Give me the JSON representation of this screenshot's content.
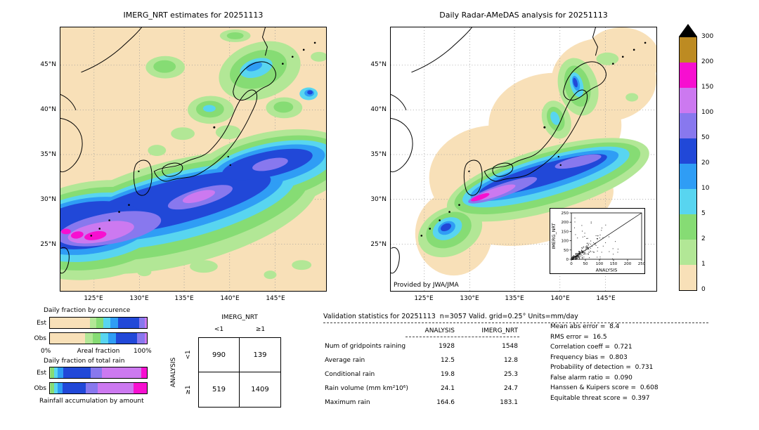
{
  "panels": {
    "left_title": "IMERG_NRT estimates for 20251113",
    "right_title": "Daily Radar-AMeDAS analysis for 20251113",
    "credit": "Provided by JWA/JMA"
  },
  "axes": {
    "lat": [
      "45°N",
      "40°N",
      "35°N",
      "30°N",
      "25°N"
    ],
    "lon": [
      "125°E",
      "130°E",
      "135°E",
      "140°E",
      "145°E"
    ]
  },
  "colorbar": {
    "units_levels": [
      0,
      1,
      2,
      5,
      10,
      20,
      50,
      100,
      150,
      200,
      300
    ],
    "labels": [
      "300",
      "200",
      "150",
      "100",
      "50",
      "20",
      "10",
      "5",
      "2",
      "1",
      "0"
    ],
    "colors": [
      "#bd8b22",
      "#f70fd0",
      "#cc79f0",
      "#8878ee",
      "#2148d8",
      "#2f9df5",
      "#58d5f0",
      "#86dc74",
      "#b2e796",
      "#f8e0b8"
    ]
  },
  "inset": {
    "xlabel": "ANALYSIS",
    "ylabel": "IMERG_NRT",
    "ticks": [
      "0",
      "50",
      "100",
      "150",
      "200",
      "250"
    ]
  },
  "fractions": {
    "occurrence_title": "Daily fraction by occurence",
    "total_title": "Daily fraction of total rain",
    "areal_label": "Areal fraction",
    "pct0": "0%",
    "pct100": "100%",
    "accum_label": "Rainfall accumulation by amount",
    "est": "Est",
    "obs": "Obs",
    "occurrence_est": [
      [
        "#f8e0b8",
        41
      ],
      [
        "#b2e796",
        7
      ],
      [
        "#86dc74",
        7
      ],
      [
        "#58d5f0",
        7
      ],
      [
        "#2f9df5",
        8
      ],
      [
        "#2148d8",
        22
      ],
      [
        "#8878ee",
        6
      ],
      [
        "#cc79f0",
        2
      ]
    ],
    "occurrence_obs": [
      [
        "#f8e0b8",
        36
      ],
      [
        "#b2e796",
        8
      ],
      [
        "#86dc74",
        8
      ],
      [
        "#58d5f0",
        8
      ],
      [
        "#2f9df5",
        8
      ],
      [
        "#2148d8",
        22
      ],
      [
        "#8878ee",
        8
      ],
      [
        "#cc79f0",
        2
      ]
    ],
    "total_est": [
      [
        "#b2e796",
        1
      ],
      [
        "#86dc74",
        3
      ],
      [
        "#58d5f0",
        4
      ],
      [
        "#2f9df5",
        6
      ],
      [
        "#2148d8",
        28
      ],
      [
        "#8878ee",
        12
      ],
      [
        "#cc79f0",
        40
      ],
      [
        "#f70fd0",
        6
      ]
    ],
    "total_obs": [
      [
        "#b2e796",
        1
      ],
      [
        "#86dc74",
        3
      ],
      [
        "#58d5f0",
        4
      ],
      [
        "#2f9df5",
        5
      ],
      [
        "#2148d8",
        24
      ],
      [
        "#8878ee",
        12
      ],
      [
        "#cc79f0",
        37
      ],
      [
        "#f70fd0",
        14
      ]
    ]
  },
  "contingency": {
    "col_header": "IMERG_NRT",
    "row_header": "ANALYSIS",
    "col_labels": [
      "<1",
      "≥1"
    ],
    "row_labels": [
      "<1",
      "≥1"
    ],
    "values": [
      [
        "990",
        "139"
      ],
      [
        "519",
        "1409"
      ]
    ]
  },
  "stats": {
    "title": "Validation statistics for 20251113  n=3057 Valid. grid=0.25° Units=mm/day",
    "col1": "ANALYSIS",
    "col2": "IMERG_NRT",
    "rows": [
      {
        "label": "Num of gridpoints raining",
        "analysis": "1928",
        "imerg": "1548"
      },
      {
        "label": "Average rain",
        "analysis": "12.5",
        "imerg": "12.8"
      },
      {
        "label": "Conditional rain",
        "analysis": "19.8",
        "imerg": "25.3"
      },
      {
        "label": "Rain volume (mm km²10⁶)",
        "analysis": "24.1",
        "imerg": "24.7"
      },
      {
        "label": "Maximum rain",
        "analysis": "164.6",
        "imerg": "183.1"
      }
    ],
    "metrics": [
      {
        "label": "Mean abs error",
        "value": "8.4"
      },
      {
        "label": "RMS error",
        "value": "16.5"
      },
      {
        "label": "Correlation coeff",
        "value": "0.721"
      },
      {
        "label": "Frequency bias",
        "value": "0.803"
      },
      {
        "label": "Probability of detection",
        "value": "0.731"
      },
      {
        "label": "False alarm ratio",
        "value": "0.090"
      },
      {
        "label": "Hanssen & Kuipers score",
        "value": "0.608"
      },
      {
        "label": "Equitable threat score",
        "value": "0.397"
      }
    ]
  },
  "chart_data": [
    {
      "type": "heatmap",
      "panel": "left",
      "title": "IMERG_NRT estimates for 20251113",
      "units": "mm/day",
      "lat_ticks": [
        "45°N",
        "40°N",
        "35°N",
        "30°N",
        "25°N"
      ],
      "lon_ticks": [
        "125°E",
        "130°E",
        "135°E",
        "140°E",
        "145°E"
      ],
      "color_levels": [
        0,
        1,
        2,
        5,
        10,
        20,
        50,
        100,
        150,
        200,
        300
      ],
      "description": "SW–NE heavy rain band (20–150 mm/day with magenta 150–200 cores) stretching from near Taiwan/Okinawa across waters south of Japan to the Pacific; scattered 1–10 mm/day cells over Hokkaido, northern Honshu and the Sea of Japan; background 0–1 mm/day."
    },
    {
      "type": "heatmap",
      "panel": "right",
      "title": "Daily Radar-AMeDAS analysis for 20251113",
      "units": "mm/day",
      "description": "Radar–gauge analysis restricted to radar coverage around the Japanese archipelago; same SW–NE band hugging the Pacific coast with 50–200 mm/day cores near Kyushu/Shikoku; light rain along west Hokkaido and northern Honshu coasts."
    },
    {
      "type": "scatter",
      "xlabel": "ANALYSIS",
      "ylabel": "IMERG_NRT",
      "xlim": [
        0,
        250
      ],
      "ylim": [
        0,
        250
      ],
      "note": "n=3057 gridpoint daily-rain pairs; dense cluster below ~100 mm/day with 1:1 diagonal line; points schematic."
    },
    {
      "type": "table",
      "name": "contingency",
      "col_header": "IMERG_NRT",
      "row_header": "ANALYSIS",
      "labels": [
        "<1",
        "≥1"
      ],
      "matrix": [
        [
          990,
          139
        ],
        [
          519,
          1409
        ]
      ]
    },
    {
      "type": "table",
      "name": "validation_statistics",
      "n": 3057,
      "grid": "0.25°",
      "units": "mm/day",
      "columns": [
        "ANALYSIS",
        "IMERG_NRT"
      ],
      "rows": [
        [
          "Num of gridpoints raining",
          1928,
          1548
        ],
        [
          "Average rain",
          12.5,
          12.8
        ],
        [
          "Conditional rain",
          19.8,
          25.3
        ],
        [
          "Rain volume (mm km²10⁶)",
          24.1,
          24.7
        ],
        [
          "Maximum rain",
          164.6,
          183.1
        ]
      ],
      "metrics": {
        "Mean abs error": 8.4,
        "RMS error": 16.5,
        "Correlation coeff": 0.721,
        "Frequency bias": 0.803,
        "Probability of detection": 0.731,
        "False alarm ratio": 0.09,
        "Hanssen & Kuipers score": 0.608,
        "Equitable threat score": 0.397
      }
    },
    {
      "type": "bar",
      "name": "daily_fraction_by_occurrence",
      "stacked": true,
      "categories": [
        "Est",
        "Obs"
      ],
      "xlabel": "Areal fraction",
      "xlim_pct": [
        0,
        100
      ],
      "bins_mm": [
        "0-1",
        "1-2",
        "2-5",
        "5-10",
        "10-20",
        "20-50",
        "50-100",
        "100-150"
      ],
      "est_pct": [
        41,
        7,
        7,
        7,
        8,
        22,
        6,
        2
      ],
      "obs_pct": [
        36,
        8,
        8,
        8,
        8,
        22,
        8,
        2
      ],
      "note": "percentages estimated from figure"
    },
    {
      "type": "bar",
      "name": "daily_fraction_of_total_rain",
      "stacked": true,
      "categories": [
        "Est",
        "Obs"
      ],
      "bins_mm": [
        "1-2",
        "2-5",
        "5-10",
        "10-20",
        "20-50",
        "50-100",
        "100-150",
        "150-200"
      ],
      "est_pct": [
        1,
        3,
        4,
        6,
        28,
        12,
        40,
        6
      ],
      "obs_pct": [
        1,
        3,
        4,
        5,
        24,
        12,
        37,
        14
      ],
      "note": "percentages estimated from figure"
    }
  ]
}
